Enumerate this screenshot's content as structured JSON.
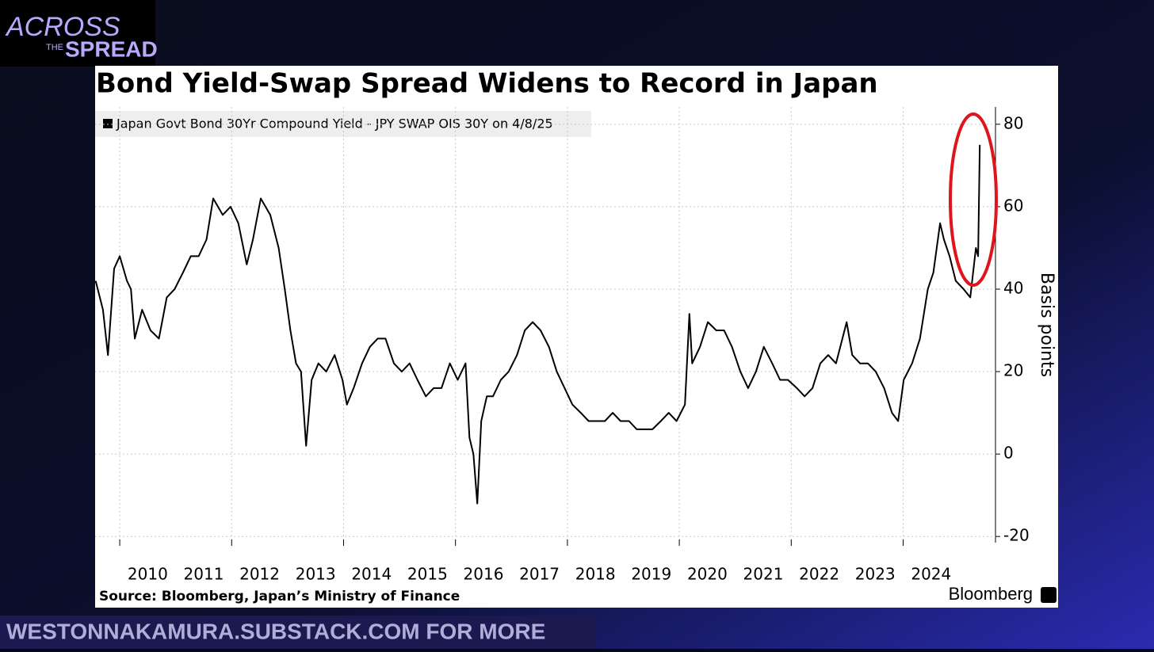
{
  "logo": {
    "big": "ACROSS",
    "small": "THE",
    "word": "SPREAD"
  },
  "banner": "WESTONNAKAMURA.SUBSTACK.COM FOR MORE",
  "chart_data": {
    "type": "line",
    "title": "Bond Yield-Swap Spread Widens to Record in Japan",
    "y_label": "Basis points",
    "source": "Source: Bloomberg, Japan’s Ministry of Finance",
    "brand": "Bloomberg",
    "x": [
      2009.57,
      2009.7,
      2009.79,
      2009.9,
      2010.0,
      2010.13,
      2010.2,
      2010.27,
      2010.4,
      2010.55,
      2010.7,
      2010.84,
      2010.98,
      2011.13,
      2011.27,
      2011.41,
      2011.55,
      2011.67,
      2011.84,
      2011.98,
      2012.12,
      2012.27,
      2012.38,
      2012.52,
      2012.69,
      2012.84,
      2012.95,
      2013.05,
      2013.15,
      2013.24,
      2013.33,
      2013.43,
      2013.55,
      2013.69,
      2013.84,
      2013.98,
      2014.06,
      2014.18,
      2014.33,
      2014.47,
      2014.61,
      2014.75,
      2014.9,
      2015.04,
      2015.18,
      2015.32,
      2015.47,
      2015.61,
      2015.75,
      2015.9,
      2016.04,
      2016.18,
      2016.25,
      2016.32,
      2016.39,
      2016.46,
      2016.56,
      2016.67,
      2016.81,
      2016.95,
      2017.1,
      2017.24,
      2017.38,
      2017.52,
      2017.67,
      2017.81,
      2017.95,
      2018.09,
      2018.24,
      2018.38,
      2018.53,
      2018.67,
      2018.81,
      2018.95,
      2019.1,
      2019.24,
      2019.38,
      2019.52,
      2019.67,
      2019.81,
      2019.95,
      2020.1,
      2020.18,
      2020.23,
      2020.37,
      2020.51,
      2020.66,
      2020.8,
      2020.94,
      2021.09,
      2021.23,
      2021.37,
      2021.51,
      2021.66,
      2021.8,
      2021.94,
      2022.1,
      2022.24,
      2022.38,
      2022.52,
      2022.66,
      2022.8,
      2022.99,
      2023.09,
      2023.23,
      2023.37,
      2023.51,
      2023.66,
      2023.8,
      2023.91,
      2024.01,
      2024.16,
      2024.3,
      2024.44,
      2024.54,
      2024.66,
      2024.73,
      2024.83,
      2024.94,
      2025.08,
      2025.2,
      2025.3,
      2025.34,
      2025.37
    ],
    "series": [
      {
        "name": "Japan Govt Bond 30Yr Compound Yield - JPY SWAP OIS 30Y on 4/8/25",
        "color": "#000000",
        "values": [
          42,
          35,
          24,
          45,
          48,
          42,
          40,
          28,
          35,
          30,
          28,
          38,
          40,
          44,
          48,
          48,
          52,
          62,
          58,
          60,
          56,
          46,
          52,
          62,
          58,
          50,
          40,
          30,
          22,
          20,
          2,
          18,
          22,
          20,
          24,
          18,
          12,
          16,
          22,
          26,
          28,
          28,
          22,
          20,
          22,
          18,
          14,
          16,
          16,
          22,
          18,
          22,
          4,
          0,
          -12,
          8,
          14,
          14,
          18,
          20,
          24,
          30,
          32,
          30,
          26,
          20,
          16,
          12,
          10,
          8,
          8,
          8,
          10,
          8,
          8,
          6,
          6,
          6,
          8,
          10,
          8,
          12,
          34,
          22,
          26,
          32,
          30,
          30,
          26,
          20,
          16,
          20,
          26,
          22,
          18,
          18,
          16,
          14,
          16,
          22,
          24,
          22,
          32,
          24,
          22,
          22,
          20,
          16,
          10,
          8,
          18,
          22,
          28,
          40,
          44,
          56,
          52,
          48,
          42,
          40,
          38,
          50,
          48,
          75
        ]
      }
    ],
    "xlim": [
      2009.56,
      2025.65
    ],
    "xticks": [
      {
        "value": 2010.5,
        "label": "2010"
      },
      {
        "value": 2011.5,
        "label": "2011"
      },
      {
        "value": 2012.5,
        "label": "2012"
      },
      {
        "value": 2013.5,
        "label": "2013"
      },
      {
        "value": 2014.5,
        "label": "2014"
      },
      {
        "value": 2015.5,
        "label": "2015"
      },
      {
        "value": 2016.5,
        "label": "2016"
      },
      {
        "value": 2017.5,
        "label": "2017"
      },
      {
        "value": 2018.5,
        "label": "2018"
      },
      {
        "value": 2019.5,
        "label": "2019"
      },
      {
        "value": 2020.5,
        "label": "2020"
      },
      {
        "value": 2021.5,
        "label": "2021"
      },
      {
        "value": 2022.5,
        "label": "2022"
      },
      {
        "value": 2023.5,
        "label": "2023"
      },
      {
        "value": 2024.5,
        "label": "2024"
      }
    ],
    "xgrid": [
      2010,
      2012,
      2014,
      2016,
      2018,
      2020,
      2022,
      2024
    ],
    "ylim": [
      -21.5,
      84.2
    ],
    "yticks": [
      80,
      60,
      40,
      20,
      0,
      -20
    ],
    "grid": true
  }
}
